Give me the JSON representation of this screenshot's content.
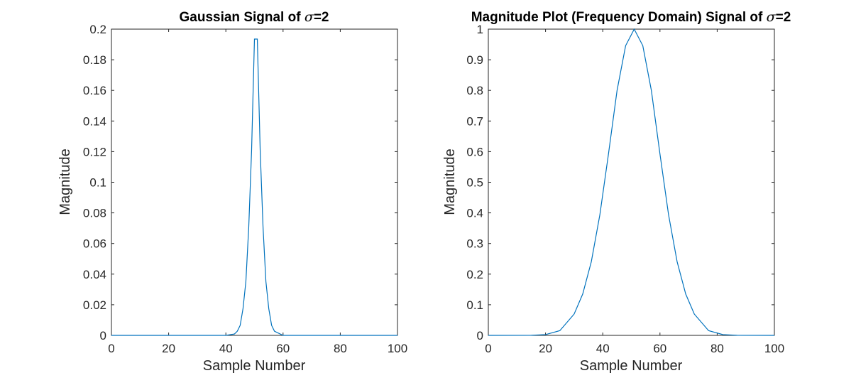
{
  "chart_data": [
    {
      "type": "line",
      "title": "Gaussian Signal of σ=2",
      "title_parts": {
        "prefix": "Gaussian Signal of ",
        "symbol": "σ",
        "suffix": "=2"
      },
      "xlabel": "Sample Number",
      "ylabel": "Magnitude",
      "xlim": [
        0,
        100
      ],
      "ylim": [
        0,
        0.2
      ],
      "xticks": [
        "0",
        "20",
        "40",
        "60",
        "80",
        "100"
      ],
      "yticks": [
        "0",
        "0.02",
        "0.04",
        "0.06",
        "0.08",
        "0.1",
        "0.12",
        "0.14",
        "0.16",
        "0.18",
        "0.2"
      ],
      "grid": false,
      "series": [
        {
          "color": "#0072BD",
          "x": [
            0,
            40,
            43,
            44,
            45,
            46,
            47,
            48,
            49,
            50,
            51,
            52,
            53,
            54,
            55,
            56,
            57,
            60,
            100
          ],
          "y": [
            0,
            0,
            0.0009,
            0.0027,
            0.0065,
            0.0175,
            0.0352,
            0.0706,
            0.121,
            0.1935,
            0.1935,
            0.121,
            0.0706,
            0.0352,
            0.0175,
            0.0065,
            0.0027,
            0,
            0
          ]
        }
      ]
    },
    {
      "type": "line",
      "title": "Magnitude Plot (Frequency Domain) Signal of σ=2",
      "title_parts": {
        "prefix": "Magnitude Plot (Frequency Domain) Signal of ",
        "symbol": "σ",
        "suffix": "=2"
      },
      "xlabel": "Sample Number",
      "ylabel": "Magnitude",
      "xlim": [
        0,
        100
      ],
      "ylim": [
        0,
        1
      ],
      "xticks": [
        "0",
        "20",
        "40",
        "60",
        "80",
        "100"
      ],
      "yticks": [
        "0",
        "0.1",
        "0.2",
        "0.3",
        "0.4",
        "0.5",
        "0.6",
        "0.7",
        "0.8",
        "0.9",
        "1"
      ],
      "grid": false,
      "series": [
        {
          "color": "#0072BD",
          "x": [
            0,
            15,
            20,
            25,
            30,
            33,
            36,
            39,
            42,
            45,
            48,
            51,
            54,
            57,
            60,
            63,
            66,
            69,
            72,
            77,
            82,
            87,
            100
          ],
          "y": [
            0,
            0.0003,
            0.0025,
            0.0154,
            0.0697,
            0.1351,
            0.2404,
            0.3943,
            0.5924,
            0.7996,
            0.946,
            1.0,
            0.946,
            0.7996,
            0.5924,
            0.3943,
            0.2404,
            0.1351,
            0.0697,
            0.0154,
            0.0025,
            0.0003,
            0
          ]
        }
      ]
    }
  ]
}
